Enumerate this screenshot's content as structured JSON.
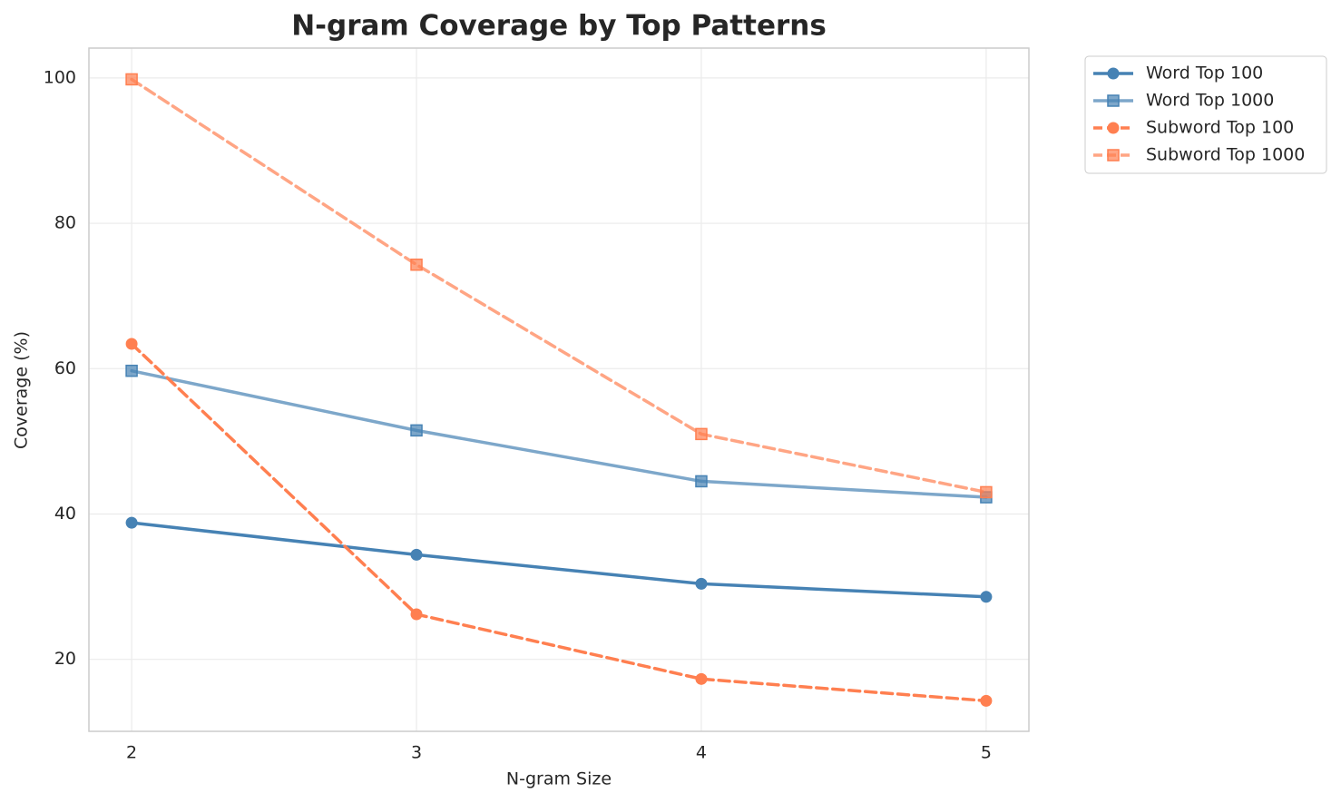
{
  "chart_data": {
    "type": "line",
    "title": "N-gram Coverage by Top Patterns",
    "x_label": "N-gram Size",
    "y_label": "Coverage (%)",
    "x": [
      2,
      3,
      4,
      5
    ],
    "series": [
      {
        "name": "Word Top 100",
        "color": "#4682b4",
        "alpha": 1,
        "marker": "circle",
        "linestyle": "solid",
        "values": [
          38.8,
          34.4,
          30.4,
          28.6
        ]
      },
      {
        "name": "Word Top 1000",
        "color": "#4682b4",
        "alpha": 0.7,
        "marker": "square",
        "linestyle": "solid",
        "values": [
          59.7,
          51.5,
          44.5,
          42.3
        ]
      },
      {
        "name": "Subword Top 100",
        "color": "#ff7f50",
        "alpha": 1,
        "marker": "circle",
        "linestyle": "dashed",
        "values": [
          63.4,
          26.2,
          17.3,
          14.3
        ]
      },
      {
        "name": "Subword Top 1000",
        "color": "#ff7f50",
        "alpha": 0.7,
        "marker": "square",
        "linestyle": "dashed",
        "values": [
          99.8,
          74.3,
          51.0,
          43.0
        ]
      }
    ],
    "xlim": [
      1.85,
      5.15
    ],
    "ylim": [
      10.1,
      104.1
    ],
    "xticks": [
      2,
      3,
      4,
      5
    ],
    "yticks": [
      20,
      40,
      60,
      80,
      100
    ],
    "grid": true,
    "legend": "outside upper right"
  }
}
